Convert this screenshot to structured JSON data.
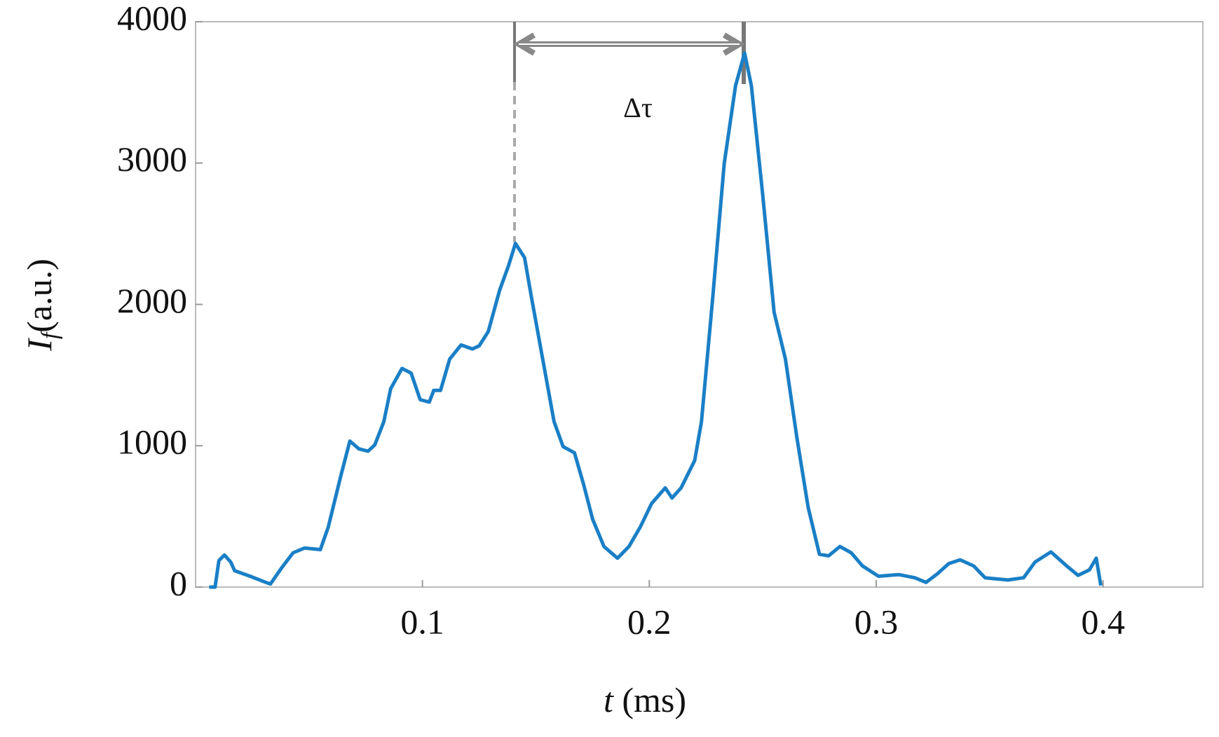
{
  "chart_data": {
    "type": "line",
    "xlabel": {
      "symbol": "t",
      "unit": "(ms)"
    },
    "ylabel": {
      "symbol": "I",
      "subscript": "f",
      "unit": "(a.u.)"
    },
    "annotation": "Δτ",
    "x": [
      0.006,
      0.0086,
      0.0103,
      0.0127,
      0.0155,
      0.0172,
      0.024,
      0.031,
      0.033,
      0.038,
      0.043,
      0.048,
      0.055,
      0.0585,
      0.064,
      0.068,
      0.072,
      0.076,
      0.079,
      0.083,
      0.086,
      0.091,
      0.095,
      0.099,
      0.103,
      0.105,
      0.108,
      0.112,
      0.117,
      0.122,
      0.125,
      0.129,
      0.134,
      0.138,
      0.141,
      0.145,
      0.148,
      0.153,
      0.158,
      0.162,
      0.167,
      0.171,
      0.175,
      0.18,
      0.186,
      0.191,
      0.196,
      0.201,
      0.207,
      0.21,
      0.214,
      0.22,
      0.223,
      0.228,
      0.233,
      0.238,
      0.242,
      0.245,
      0.25,
      0.255,
      0.26,
      0.265,
      0.27,
      0.275,
      0.279,
      0.284,
      0.289,
      0.294,
      0.301,
      0.31,
      0.317,
      0.322,
      0.327,
      0.332,
      0.337,
      0.343,
      0.348,
      0.358,
      0.365,
      0.37,
      0.377,
      0.384,
      0.389,
      0.394,
      0.397,
      0.399
    ],
    "series": [
      {
        "color": "#1a7fc6",
        "values": [
          0,
          0,
          188,
          227,
          177,
          116,
          77,
          33,
          22,
          138,
          243,
          276,
          265,
          425,
          785,
          1033,
          978,
          961,
          1006,
          1171,
          1403,
          1547,
          1514,
          1326,
          1309,
          1392,
          1392,
          1613,
          1713,
          1685,
          1707,
          1807,
          2099,
          2276,
          2431,
          2331,
          2055,
          1613,
          1171,
          994,
          950,
          729,
          481,
          287,
          204,
          287,
          425,
          591,
          702,
          630,
          702,
          895,
          1171,
          2055,
          2994,
          3547,
          3779,
          3547,
          2773,
          1945,
          1613,
          1061,
          564,
          232,
          221,
          287,
          243,
          149,
          77,
          88,
          66,
          33,
          94,
          166,
          193,
          149,
          66,
          50,
          66,
          177,
          249,
          149,
          83,
          122,
          204,
          11
        ]
      }
    ],
    "xlim": [
      0,
      0.444
    ],
    "xticks": [
      0.1,
      0.2,
      0.3,
      0.4
    ],
    "ylim": [
      0,
      4000
    ],
    "yticks": [
      0,
      1000,
      2000,
      3000,
      4000
    ]
  }
}
